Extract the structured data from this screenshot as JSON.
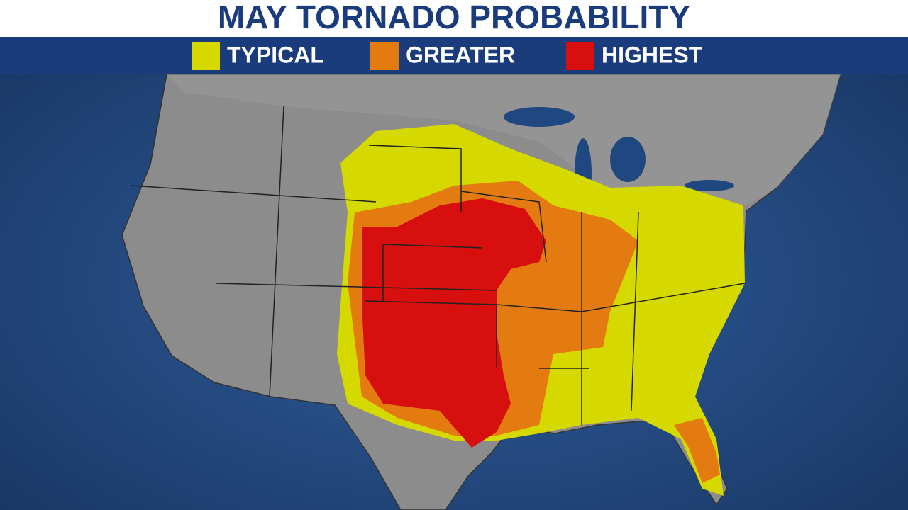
{
  "title": "MAY TORNADO PROBABILITY",
  "legend": [
    {
      "label": "TYPICAL",
      "color": "#d6d900"
    },
    {
      "label": "GREATER",
      "color": "#e37b10"
    },
    {
      "label": "HIGHEST",
      "color": "#d70f0f"
    }
  ]
}
